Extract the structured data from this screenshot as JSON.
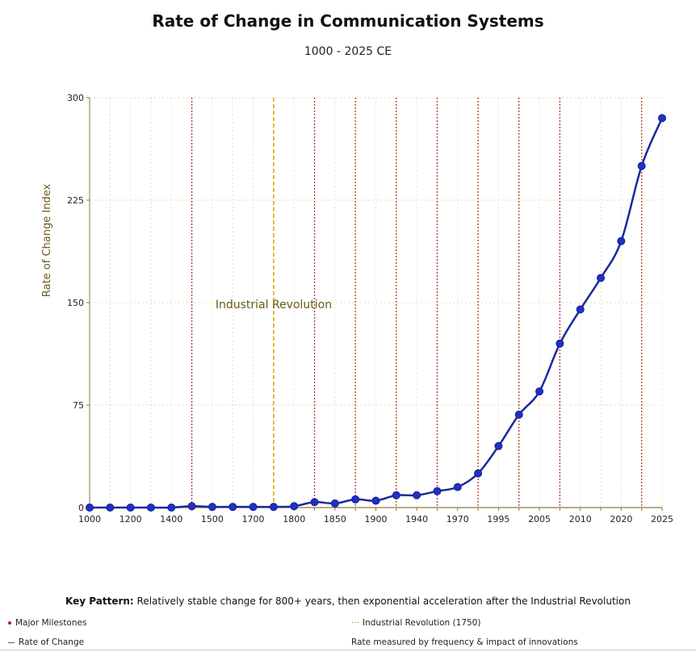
{
  "chart_data": {
    "type": "line",
    "title": "Rate of Change in Communication Systems",
    "subtitle": "1000 - 2025 CE",
    "ylabel": "Rate of Change Index",
    "xlabel": "",
    "ylim": [
      0,
      300
    ],
    "yticks": [
      "0",
      "75",
      "150",
      "225",
      "300"
    ],
    "grid": true,
    "categories": [
      "1000",
      "1100",
      "1200",
      "1300",
      "1400",
      "1450",
      "1500",
      "1600",
      "1700",
      "1750",
      "1800",
      "1830",
      "1850",
      "1870",
      "1900",
      "1920",
      "1940",
      "1960",
      "1970",
      "1980",
      "1995",
      "2000",
      "2005",
      "2007",
      "2010",
      "2015",
      "2020",
      "2022",
      "2025"
    ],
    "tick_labels": [
      "1000",
      "",
      "1200",
      "",
      "1400",
      "",
      "1500",
      "",
      "1700",
      "",
      "1800",
      "",
      "1850",
      "",
      "1900",
      "",
      "1940",
      "",
      "1970",
      "",
      "1995",
      "",
      "2005",
      "",
      "2010",
      "",
      "2020",
      "",
      "2025"
    ],
    "series": [
      {
        "name": "Rate of Change",
        "color": "#1a2a9c",
        "marker_color": "#2030c8",
        "values": [
          0,
          0,
          0,
          0,
          0,
          1,
          0.5,
          0.5,
          0.5,
          0.5,
          1,
          4,
          3,
          6,
          5,
          9,
          9,
          12,
          15,
          25,
          45,
          68,
          85,
          120,
          145,
          168,
          195,
          250,
          285
        ]
      }
    ],
    "milestone_indices": [
      5,
      11,
      13,
      15,
      17,
      19,
      21,
      23,
      27
    ],
    "milestone_color": "#b03010",
    "industrial_revolution": {
      "index": 9,
      "label": "Industrial Revolution",
      "color": "#e0a000"
    }
  },
  "key_pattern": {
    "label": "Key Pattern:",
    "text": "Relatively stable change for 800+ years, then exponential acceleration after the Industrial Revolution"
  },
  "legend": {
    "milestones": "Major Milestones",
    "industrial": "Industrial Revolution (1750)",
    "rate": "Rate of Change",
    "note": "Rate measured by frequency & impact of innovations"
  }
}
